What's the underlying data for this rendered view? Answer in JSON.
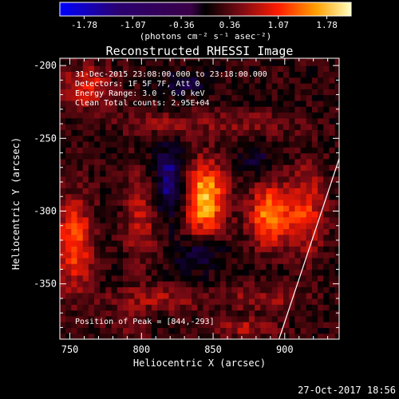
{
  "colorbar": {
    "ticks": [
      "-1.78",
      "-1.07",
      "-0.36",
      "0.36",
      "1.07",
      "1.78"
    ],
    "unit_label": "(photons cm⁻² s⁻¹ asec⁻²)"
  },
  "header": {
    "title": "Reconstructed RHESSI Image",
    "info_lines": [
      "31-Dec-2015 23:08:00.000 to 23:18:00.000",
      "Detectors: 1F 5F 7F, Att 0",
      "Energy Range: 3.0 - 6.0 keV",
      "Clean    Total counts: 2.95E+04"
    ],
    "peak_label": "Position of Peak = [844,-293]"
  },
  "footer": {
    "date": "27-Oct-2017 18:56"
  },
  "chart_data": {
    "type": "heatmap",
    "title": "Reconstructed RHESSI Image",
    "xlabel": "Heliocentric X (arcsec)",
    "ylabel": "Heliocentric Y (arcsec)",
    "xlim": [
      743,
      938
    ],
    "ylim": [
      -388,
      -195
    ],
    "xticks": [
      750,
      800,
      850,
      900
    ],
    "yticks": [
      -200,
      -250,
      -300,
      -350
    ],
    "xtick_labels": [
      "750",
      "800",
      "850",
      "900"
    ],
    "ytick_labels": [
      "-200",
      "-250",
      "-300",
      "-350"
    ],
    "colorbar_range": [
      -1.78,
      1.78
    ],
    "colormap": [
      "#0000ff",
      "#200058",
      "#000000",
      "#7a0a14",
      "#ff1c00",
      "#ffb000",
      "#ffffa0"
    ],
    "background_value": -0.4,
    "peak": [
      844,
      -293
    ],
    "sources": [
      {
        "x": 844,
        "y": -291,
        "peak": 1.78,
        "sx": 10,
        "sy": 17
      },
      {
        "x": 890,
        "y": -303,
        "peak": 1.45,
        "sx": 10,
        "sy": 15
      },
      {
        "x": 753,
        "y": -322,
        "peak": 1.2,
        "sx": 9,
        "sy": 22
      },
      {
        "x": 800,
        "y": -305,
        "peak": 0.7,
        "sx": 8,
        "sy": 22
      },
      {
        "x": 915,
        "y": -300,
        "peak": 0.9,
        "sx": 9,
        "sy": 22
      },
      {
        "x": 762,
        "y": -215,
        "peak": 0.9,
        "sx": 12,
        "sy": 10
      },
      {
        "x": 820,
        "y": -240,
        "peak": 0.5,
        "sx": 25,
        "sy": 6
      },
      {
        "x": 883,
        "y": -240,
        "peak": 0.4,
        "sx": 20,
        "sy": 6
      },
      {
        "x": 810,
        "y": -360,
        "peak": 0.55,
        "sx": 25,
        "sy": 6
      },
      {
        "x": 885,
        "y": -360,
        "peak": 0.5,
        "sx": 20,
        "sy": 6
      },
      {
        "x": 870,
        "y": -380,
        "peak": 0.6,
        "sx": 18,
        "sy": 5
      },
      {
        "x": 790,
        "y": -378,
        "peak": 0.4,
        "sx": 10,
        "sy": 6
      }
    ],
    "holes": [
      {
        "x": 820,
        "y": -280,
        "depth": -1.0,
        "sx": 8,
        "sy": 18
      },
      {
        "x": 840,
        "y": -330,
        "depth": -0.6,
        "sx": 12,
        "sy": 8
      },
      {
        "x": 830,
        "y": -212,
        "depth": -0.6,
        "sx": 10,
        "sy": 6
      },
      {
        "x": 880,
        "y": -265,
        "depth": -0.5,
        "sx": 8,
        "sy": 8
      }
    ],
    "limb_line": {
      "x": [
        896,
        938
      ],
      "y": [
        -388,
        -264
      ]
    }
  }
}
